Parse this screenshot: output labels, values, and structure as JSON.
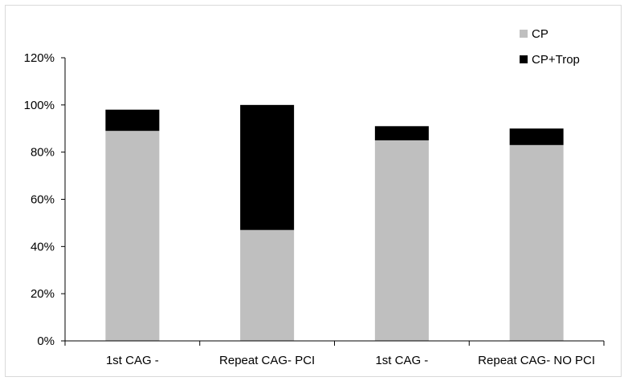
{
  "chart_data": {
    "type": "bar",
    "stacked": true,
    "title": "",
    "xlabel": "",
    "ylabel": "",
    "categories": [
      "1st CAG -",
      "Repeat CAG- PCI",
      "1st CAG -",
      "Repeat CAG- NO PCI"
    ],
    "series": [
      {
        "name": "CP",
        "values": [
          89,
          47,
          85,
          83
        ],
        "color": "#bfbfbf"
      },
      {
        "name": "CP+Trop",
        "values": [
          9,
          53,
          6,
          7
        ],
        "color": "#000000"
      }
    ],
    "ylim": [
      0,
      120
    ],
    "yticks": [
      0,
      20,
      40,
      60,
      80,
      100,
      120
    ],
    "ytick_labels": [
      "0%",
      "20%",
      "40%",
      "60%",
      "80%",
      "100%",
      "120%"
    ],
    "grid": false,
    "legend_position": "top-right"
  }
}
